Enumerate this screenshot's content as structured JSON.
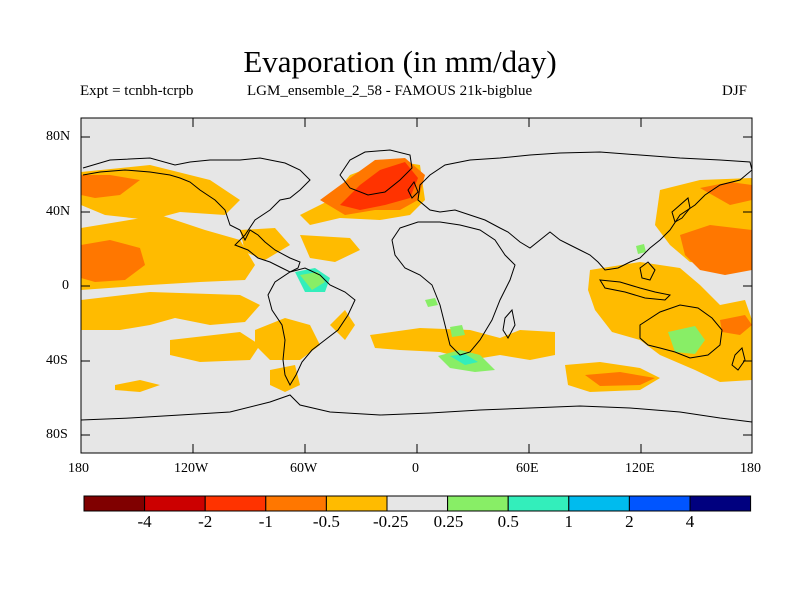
{
  "title": "Evaporation (in mm/day)",
  "experiment": "Expt = tcnbh-tcrpb",
  "subtitle": "LGM_ensemble_2_58 - FAMOUS 21k-bigblue",
  "season": "DJF",
  "lat_ticks": [
    "80N",
    "40N",
    "0",
    "40S",
    "80S"
  ],
  "lon_ticks": [
    "180",
    "120W",
    "60W",
    "0",
    "60E",
    "120E",
    "180"
  ],
  "colorbar": {
    "colors": [
      "#800000",
      "#cc0000",
      "#ff3300",
      "#ff7700",
      "#ffbb00",
      "#e6e6e6",
      "#88ee66",
      "#33eebb",
      "#00bbee",
      "#0055ff",
      "#00007f"
    ],
    "labels": [
      "-4",
      "-2",
      "-1",
      "-0.5",
      "-0.25",
      "0.25",
      "0.5",
      "1",
      "2",
      "4"
    ]
  }
}
